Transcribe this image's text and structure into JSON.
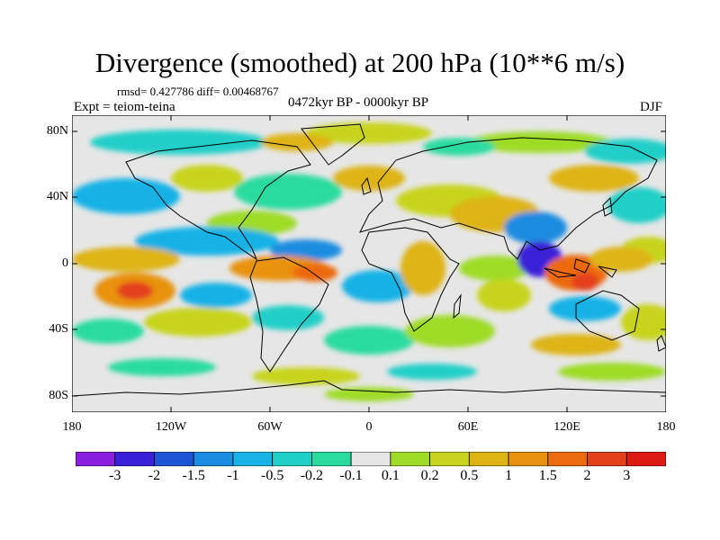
{
  "title": "Divergence (smoothed) at 200 hPa (10**6 m/s)",
  "stats": "rmsd= 0.427786 diff= 0.00468767",
  "experiment": "Expt = teiom-teina",
  "period": "0472kyr BP - 0000kyr BP",
  "season": "DJF",
  "axes": {
    "lat_ticks": [
      "80N",
      "40N",
      "0",
      "40S",
      "80S"
    ],
    "lon_ticks": [
      "180",
      "120W",
      "60W",
      "0",
      "60E",
      "120E",
      "180"
    ]
  },
  "colorbar": {
    "labels": [
      "-3",
      "-2",
      "-1.5",
      "-1",
      "-0.5",
      "-0.2",
      "-0.1",
      "0.1",
      "0.2",
      "0.5",
      "1",
      "1.5",
      "2",
      "3"
    ],
    "colors": [
      "#8a1fe0",
      "#3a20d8",
      "#1e55d6",
      "#1b8ce0",
      "#18b2e6",
      "#20cfc8",
      "#2adba0",
      "#e6e6e6",
      "#9edc28",
      "#c8d41e",
      "#deb414",
      "#e89210",
      "#ec6a10",
      "#e4401a",
      "#de1a14"
    ]
  },
  "icons": [
    "world-map-coastlines"
  ]
}
